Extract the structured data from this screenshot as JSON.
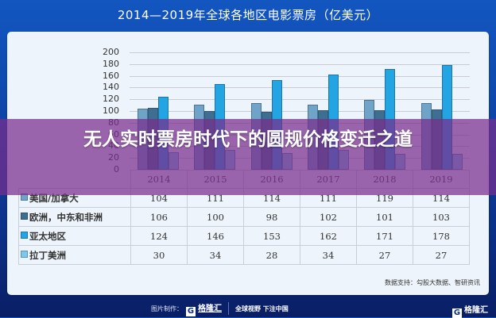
{
  "title": "2014—2019年全球各地区电影票房（亿美元）",
  "headline": "无人实时票房时代下的圆规价格变迁之道",
  "chart_data": {
    "type": "bar",
    "title": "2014—2019年全球各地区电影票房（亿美元）",
    "xlabel": "",
    "ylabel": "",
    "ylim": [
      0,
      200
    ],
    "yticks": [
      0,
      20,
      40,
      60,
      80,
      100,
      120,
      140,
      160,
      180,
      200
    ],
    "grid": true,
    "legend_position": "table-below",
    "categories": [
      "2014",
      "2015",
      "2016",
      "2017",
      "2018",
      "2019"
    ],
    "series": [
      {
        "name": "美国/加拿大",
        "color": "#6fa3c7",
        "values": [
          104,
          111,
          114,
          111,
          119,
          114
        ]
      },
      {
        "name": "欧洲，中东和非洲",
        "color": "#3f6f90",
        "values": [
          106,
          100,
          98,
          102,
          101,
          103
        ]
      },
      {
        "name": "亚太地区",
        "color": "#23a4e3",
        "values": [
          124,
          146,
          153,
          162,
          171,
          178
        ]
      },
      {
        "name": "拉丁美洲",
        "color": "#7ec8ea",
        "values": [
          30,
          34,
          28,
          34,
          27,
          27
        ]
      }
    ]
  },
  "table": {
    "header": [
      "",
      "2014",
      "2015",
      "2016",
      "2017",
      "2018",
      "2019"
    ],
    "rows": [
      {
        "label": "美国/加拿大",
        "values": [
          "104",
          "111",
          "114",
          "111",
          "119",
          "114"
        ]
      },
      {
        "label": "欧洲，中东和非洲",
        "values": [
          "106",
          "100",
          "98",
          "102",
          "101",
          "103"
        ]
      },
      {
        "label": "亚太地区",
        "values": [
          "124",
          "146",
          "153",
          "162",
          "171",
          "178"
        ]
      },
      {
        "label": "拉丁美洲",
        "values": [
          "30",
          "34",
          "28",
          "34",
          "27",
          "27"
        ]
      }
    ]
  },
  "source": "数据支持：勾股大数据、智研资讯",
  "footer": {
    "credit_label": "图片制作：",
    "logo_mark": "G",
    "logo_text": "格隆汇",
    "slogan": "全球视野 下注中国",
    "corner_logo_text": "格隆汇"
  },
  "colors": {
    "frame": "#0e49ad",
    "card": "#eef4fb",
    "overlay": "#782d8c"
  }
}
